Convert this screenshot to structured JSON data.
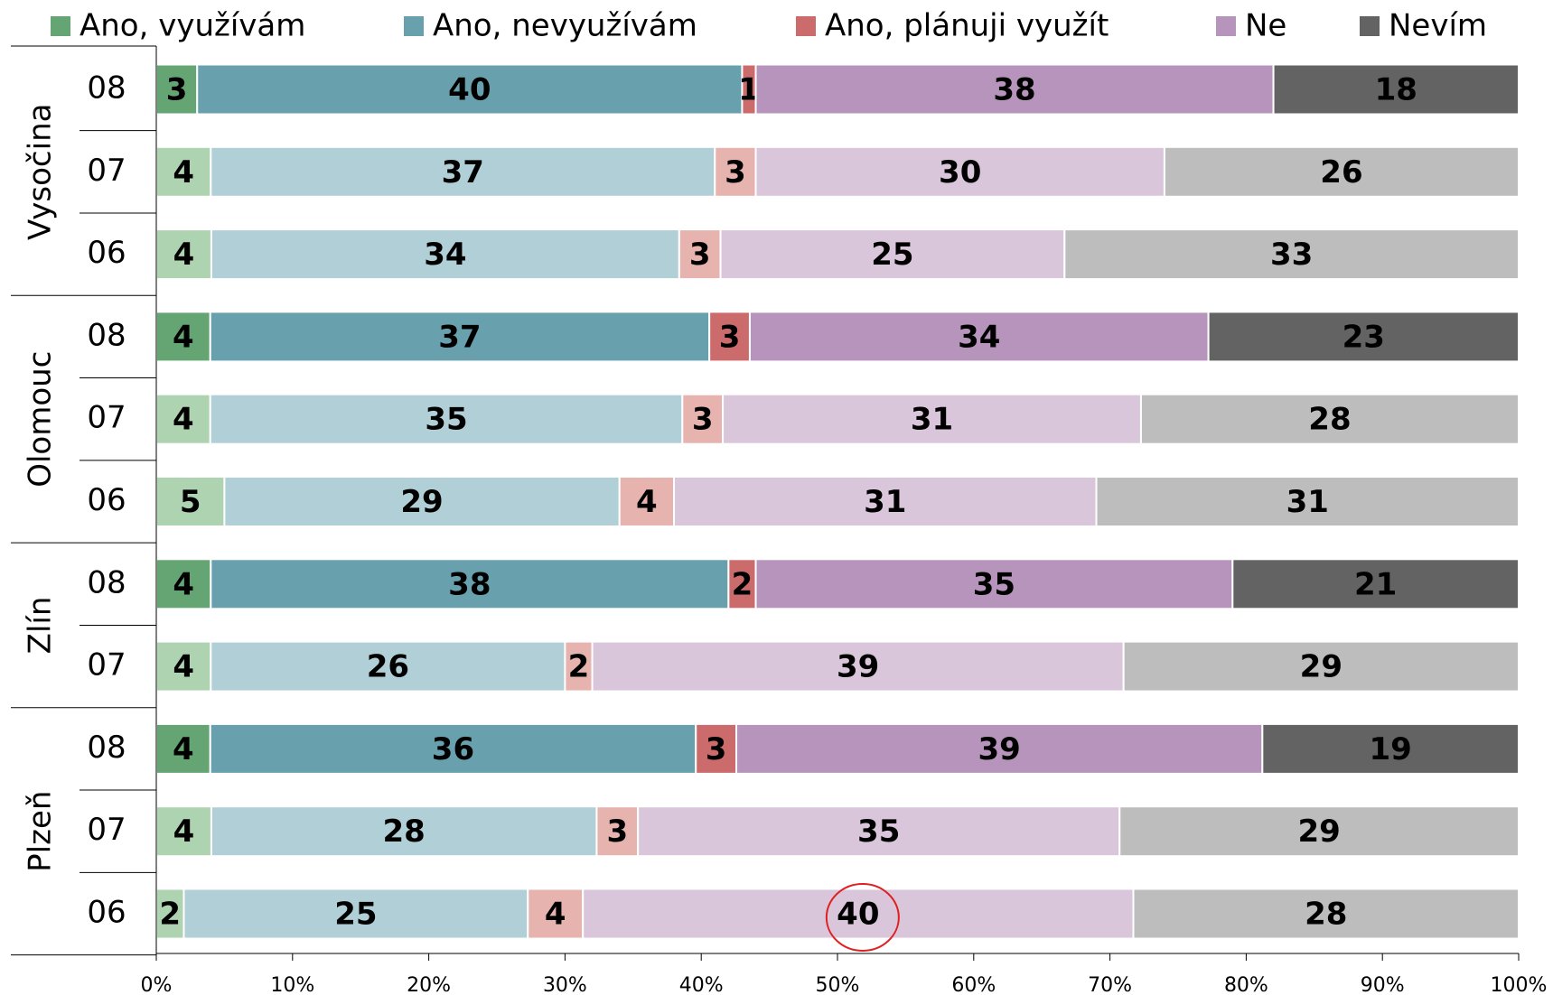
{
  "chart_data": {
    "type": "stacked100bar",
    "groups": [
      {
        "name": "Vysočina",
        "categories": [
          "08",
          "07",
          "06"
        ]
      },
      {
        "name": "Olomouc",
        "categories": [
          "08",
          "07",
          "06"
        ]
      },
      {
        "name": "Zlín",
        "categories": [
          "08",
          "07"
        ]
      },
      {
        "name": "Plzeň",
        "categories": [
          "08",
          "07",
          "06"
        ]
      }
    ],
    "highlight": [
      true,
      false,
      false,
      true,
      false,
      false,
      true,
      false,
      true,
      false,
      false
    ],
    "series": [
      {
        "name": "Ano, využívám",
        "color": "#64a573",
        "light_color": "#aed3b0",
        "values": [
          3,
          4,
          4,
          4,
          4,
          5,
          4,
          4,
          4,
          4,
          2
        ]
      },
      {
        "name": "Ano, nevyužívám",
        "color": "#68a0ae",
        "light_color": "#b1cfd6",
        "values": [
          40,
          37,
          34,
          37,
          35,
          29,
          38,
          26,
          36,
          28,
          25
        ]
      },
      {
        "name": "Ano, plánuji využít",
        "color": "#cc6b6b",
        "light_color": "#e7b3ae",
        "values": [
          1,
          3,
          3,
          3,
          3,
          4,
          2,
          2,
          3,
          3,
          4
        ]
      },
      {
        "name": "Ne",
        "color": "#b794bc",
        "light_color": "#d9c6db",
        "values": [
          38,
          30,
          25,
          34,
          31,
          31,
          35,
          39,
          39,
          35,
          40
        ]
      },
      {
        "name": "Nevím",
        "color": "#636363",
        "light_color": "#bdbdbd",
        "values": [
          18,
          26,
          33,
          23,
          28,
          31,
          21,
          29,
          19,
          29,
          28
        ]
      }
    ],
    "circled": {
      "series": 3,
      "index": 10
    },
    "xlim": [
      0,
      100
    ],
    "xticks": [
      {
        "value": 0,
        "label": "0%"
      },
      {
        "value": 10,
        "label": "10%"
      },
      {
        "value": 20,
        "label": "20%"
      },
      {
        "value": 30,
        "label": "30%"
      },
      {
        "value": 40,
        "label": "40%"
      },
      {
        "value": 50,
        "label": "50%"
      },
      {
        "value": 60,
        "label": "60%"
      },
      {
        "value": 70,
        "label": "70%"
      },
      {
        "value": 80,
        "label": "80%"
      },
      {
        "value": 90,
        "label": "90%"
      },
      {
        "value": 100,
        "label": "100%"
      }
    ]
  }
}
